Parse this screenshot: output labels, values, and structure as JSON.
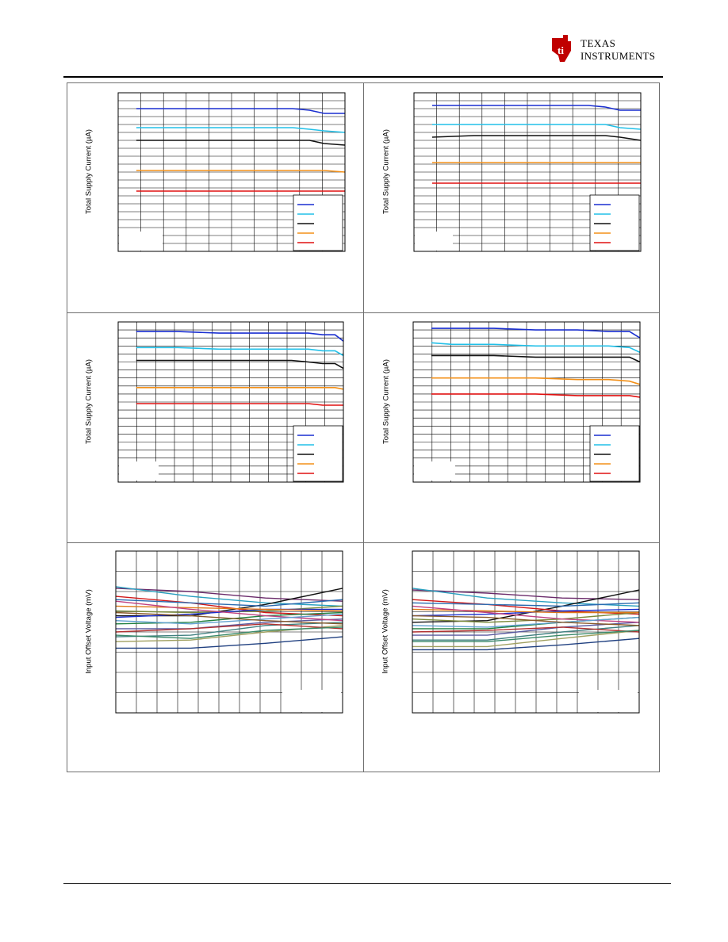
{
  "brand": {
    "line1": "TEXAS",
    "line2": "INSTRUMENTS",
    "color": "#c00000"
  },
  "colors": {
    "frame": "#6e6e6e",
    "grid": "#000000",
    "blue": "#1a2fd0",
    "cyan": "#22c0e8",
    "black": "#111111",
    "orange": "#f39018",
    "red": "#e01010"
  },
  "charts": [
    {
      "ylabel": "Total Supply Current (µA)"
    },
    {
      "ylabel": "Total Supply Current (µA)"
    },
    {
      "ylabel": "Total Supply Current (µA)"
    },
    {
      "ylabel": "Total Supply Current (µA)"
    },
    {
      "ylabel": "Input Offset Voltage (mV)"
    },
    {
      "ylabel": "Input Offset Voltage (mV)"
    }
  ],
  "chart_data": [
    {
      "type": "line",
      "ylabel": "Total Supply Current (µA)",
      "grid": true,
      "legend": "bottom-right",
      "x": [
        0,
        0.2,
        0.4,
        0.6,
        0.75,
        0.83,
        0.9,
        1.0
      ],
      "series": [
        {
          "color": "blue",
          "values": [
            0.9,
            0.9,
            0.9,
            0.9,
            0.9,
            0.89,
            0.87,
            0.87
          ]
        },
        {
          "color": "cyan",
          "values": [
            0.78,
            0.78,
            0.78,
            0.78,
            0.78,
            0.77,
            0.76,
            0.75
          ]
        },
        {
          "color": "black",
          "values": [
            0.7,
            0.7,
            0.7,
            0.7,
            0.7,
            0.7,
            0.68,
            0.67
          ]
        },
        {
          "color": "orange",
          "values": [
            0.51,
            0.51,
            0.51,
            0.51,
            0.51,
            0.51,
            0.51,
            0.5
          ]
        },
        {
          "color": "red",
          "values": [
            0.38,
            0.38,
            0.38,
            0.38,
            0.38,
            0.38,
            0.38,
            0.38
          ]
        }
      ]
    },
    {
      "type": "line",
      "ylabel": "Total Supply Current (µA)",
      "grid": true,
      "legend": "bottom-right",
      "x": [
        0,
        0.2,
        0.4,
        0.6,
        0.75,
        0.83,
        0.9,
        1.0
      ],
      "series": [
        {
          "color": "blue",
          "values": [
            0.92,
            0.92,
            0.92,
            0.92,
            0.92,
            0.91,
            0.89,
            0.89
          ]
        },
        {
          "color": "cyan",
          "values": [
            0.8,
            0.8,
            0.8,
            0.8,
            0.8,
            0.8,
            0.78,
            0.77
          ]
        },
        {
          "color": "black",
          "values": [
            0.72,
            0.73,
            0.73,
            0.73,
            0.73,
            0.73,
            0.72,
            0.7
          ]
        },
        {
          "color": "orange",
          "values": [
            0.56,
            0.56,
            0.56,
            0.56,
            0.56,
            0.56,
            0.56,
            0.56
          ]
        },
        {
          "color": "red",
          "values": [
            0.43,
            0.43,
            0.43,
            0.43,
            0.43,
            0.43,
            0.43,
            0.43
          ]
        }
      ]
    },
    {
      "type": "line",
      "ylabel": "Total Supply Current (µA)",
      "grid": true,
      "legend": "bottom-right",
      "x": [
        0,
        0.2,
        0.4,
        0.6,
        0.75,
        0.83,
        0.9,
        0.96,
        1.0
      ],
      "series": [
        {
          "color": "blue",
          "values": [
            0.94,
            0.94,
            0.93,
            0.93,
            0.93,
            0.93,
            0.92,
            0.92,
            0.88
          ]
        },
        {
          "color": "cyan",
          "values": [
            0.84,
            0.84,
            0.83,
            0.83,
            0.83,
            0.83,
            0.82,
            0.82,
            0.79
          ]
        },
        {
          "color": "black",
          "values": [
            0.76,
            0.76,
            0.76,
            0.76,
            0.76,
            0.75,
            0.74,
            0.74,
            0.71
          ]
        },
        {
          "color": "orange",
          "values": [
            0.59,
            0.59,
            0.59,
            0.59,
            0.59,
            0.59,
            0.59,
            0.59,
            0.58
          ]
        },
        {
          "color": "red",
          "values": [
            0.49,
            0.49,
            0.49,
            0.49,
            0.49,
            0.49,
            0.48,
            0.48,
            0.48
          ]
        }
      ]
    },
    {
      "type": "line",
      "ylabel": "Total Supply Current (µA)",
      "grid": true,
      "legend": "bottom-right",
      "x": [
        0,
        0.1,
        0.3,
        0.5,
        0.7,
        0.85,
        0.95,
        1.0
      ],
      "series": [
        {
          "color": "blue",
          "values": [
            0.96,
            0.96,
            0.96,
            0.95,
            0.95,
            0.94,
            0.94,
            0.9
          ]
        },
        {
          "color": "cyan",
          "values": [
            0.87,
            0.86,
            0.86,
            0.85,
            0.85,
            0.85,
            0.84,
            0.81
          ]
        },
        {
          "color": "black",
          "values": [
            0.79,
            0.79,
            0.79,
            0.78,
            0.78,
            0.78,
            0.78,
            0.75
          ]
        },
        {
          "color": "orange",
          "values": [
            0.65,
            0.65,
            0.65,
            0.65,
            0.64,
            0.64,
            0.63,
            0.61
          ]
        },
        {
          "color": "red",
          "values": [
            0.55,
            0.55,
            0.55,
            0.55,
            0.54,
            0.54,
            0.54,
            0.53
          ]
        }
      ]
    },
    {
      "type": "line",
      "ylabel": "Input Offset Voltage (mV)",
      "grid": true,
      "legend": "none",
      "x": [
        0,
        0.33,
        0.66,
        1.0
      ],
      "series": [
        {
          "color": "#6a2a6a",
          "values": [
            0.77,
            0.75,
            0.71,
            0.69
          ]
        },
        {
          "color": "#2aa0c0",
          "values": [
            0.78,
            0.72,
            0.68,
            0.66
          ]
        },
        {
          "color": "#111111",
          "values": [
            0.6,
            0.6,
            0.67,
            0.77
          ]
        },
        {
          "color": "#d01818",
          "values": [
            0.72,
            0.68,
            0.62,
            0.6
          ]
        },
        {
          "color": "#7a8a3a",
          "values": [
            0.63,
            0.62,
            0.63,
            0.66
          ]
        },
        {
          "color": "#1a2fd0",
          "values": [
            0.59,
            0.61,
            0.64,
            0.64
          ]
        },
        {
          "color": "#e07818",
          "values": [
            0.66,
            0.65,
            0.64,
            0.63
          ]
        },
        {
          "color": "#208040",
          "values": [
            0.55,
            0.56,
            0.6,
            0.62
          ]
        },
        {
          "color": "#5a5aa0",
          "values": [
            0.52,
            0.52,
            0.56,
            0.58
          ]
        },
        {
          "color": "#c04080",
          "values": [
            0.69,
            0.64,
            0.6,
            0.57
          ]
        },
        {
          "color": "#408080",
          "values": [
            0.47,
            0.48,
            0.54,
            0.56
          ]
        },
        {
          "color": "#a0a060",
          "values": [
            0.44,
            0.45,
            0.5,
            0.54
          ]
        },
        {
          "color": "#2a6ab0",
          "values": [
            0.7,
            0.68,
            0.66,
            0.7
          ]
        },
        {
          "color": "#b03030",
          "values": [
            0.5,
            0.52,
            0.55,
            0.52
          ]
        },
        {
          "color": "#60a0d0",
          "values": [
            0.57,
            0.55,
            0.58,
            0.61
          ]
        },
        {
          "color": "#8a5a2a",
          "values": [
            0.62,
            0.6,
            0.57,
            0.55
          ]
        },
        {
          "color": "#3a8a6a",
          "values": [
            0.48,
            0.46,
            0.51,
            0.53
          ]
        },
        {
          "color": "#204080",
          "values": [
            0.4,
            0.4,
            0.43,
            0.47
          ]
        }
      ]
    },
    {
      "type": "line",
      "ylabel": "Input Offset Voltage (mV)",
      "grid": true,
      "legend": "none",
      "x": [
        0,
        0.33,
        0.66,
        1.0
      ],
      "series": [
        {
          "color": "#6a2a6a",
          "values": [
            0.76,
            0.74,
            0.71,
            0.7
          ]
        },
        {
          "color": "#2aa0c0",
          "values": [
            0.77,
            0.71,
            0.68,
            0.66
          ]
        },
        {
          "color": "#111111",
          "values": [
            0.56,
            0.57,
            0.66,
            0.76
          ]
        },
        {
          "color": "#d01818",
          "values": [
            0.7,
            0.67,
            0.63,
            0.61
          ]
        },
        {
          "color": "#7a8a3a",
          "values": [
            0.58,
            0.56,
            0.58,
            0.62
          ]
        },
        {
          "color": "#1a2fd0",
          "values": [
            0.6,
            0.61,
            0.63,
            0.64
          ]
        },
        {
          "color": "#e07818",
          "values": [
            0.64,
            0.63,
            0.62,
            0.62
          ]
        },
        {
          "color": "#208040",
          "values": [
            0.52,
            0.52,
            0.56,
            0.59
          ]
        },
        {
          "color": "#5a5aa0",
          "values": [
            0.48,
            0.48,
            0.53,
            0.56
          ]
        },
        {
          "color": "#c04080",
          "values": [
            0.66,
            0.62,
            0.58,
            0.56
          ]
        },
        {
          "color": "#408080",
          "values": [
            0.45,
            0.45,
            0.5,
            0.54
          ]
        },
        {
          "color": "#a0a060",
          "values": [
            0.41,
            0.41,
            0.46,
            0.51
          ]
        },
        {
          "color": "#2a6ab0",
          "values": [
            0.68,
            0.67,
            0.66,
            0.68
          ]
        },
        {
          "color": "#b03030",
          "values": [
            0.5,
            0.51,
            0.53,
            0.5
          ]
        },
        {
          "color": "#60a0d0",
          "values": [
            0.54,
            0.53,
            0.56,
            0.59
          ]
        },
        {
          "color": "#8a5a2a",
          "values": [
            0.6,
            0.59,
            0.56,
            0.54
          ]
        },
        {
          "color": "#3a8a6a",
          "values": [
            0.44,
            0.44,
            0.48,
            0.51
          ]
        },
        {
          "color": "#204080",
          "values": [
            0.39,
            0.39,
            0.42,
            0.46
          ]
        }
      ]
    }
  ]
}
